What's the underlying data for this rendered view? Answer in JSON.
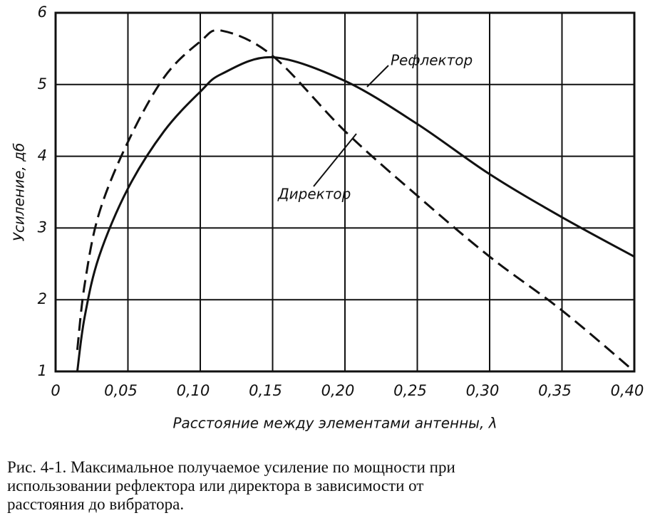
{
  "chart_data": {
    "type": "line",
    "y_label": "Усиление, дб",
    "x_label": "Расстояние между элементами антенны, λ",
    "x": [
      0.015,
      0.02,
      0.03,
      0.05,
      0.075,
      0.1,
      0.115,
      0.15,
      0.2,
      0.25,
      0.3,
      0.35,
      0.4
    ],
    "series": [
      {
        "name": "Рефлектор",
        "color": "#111111",
        "dash": false,
        "values": [
          1.0,
          1.75,
          2.6,
          3.55,
          4.35,
          4.9,
          5.15,
          5.38,
          5.05,
          4.45,
          3.75,
          3.15,
          2.6
        ]
      },
      {
        "name": "Директор",
        "color": "#111111",
        "dash": true,
        "values": [
          1.3,
          2.2,
          3.2,
          4.2,
          5.1,
          5.6,
          5.75,
          5.4,
          4.35,
          3.45,
          2.6,
          1.85,
          1.0
        ]
      }
    ],
    "xlim": [
      0,
      0.4
    ],
    "ylim": [
      1,
      6
    ],
    "xticks": [
      0,
      {
        "value": 0.05,
        "label": "0,05"
      },
      {
        "value": 0.1,
        "label": "0,10"
      },
      {
        "value": 0.15,
        "label": "0,15"
      },
      {
        "value": 0.2,
        "label": "0,20"
      },
      {
        "value": 0.25,
        "label": "0,25"
      },
      {
        "value": 0.3,
        "label": "0,30"
      },
      {
        "value": 0.35,
        "label": "0,35"
      },
      {
        "value": 0.4,
        "label": "0,40"
      }
    ],
    "yticks": [
      1,
      2,
      3,
      4,
      5,
      6
    ],
    "grid": true,
    "caption": [
      "Рис. 4-1. Максимальное получаемое усиление по мощности при",
      "использовании рефлектора или директора в зависимости от",
      "расстояния до вибратора."
    ]
  }
}
